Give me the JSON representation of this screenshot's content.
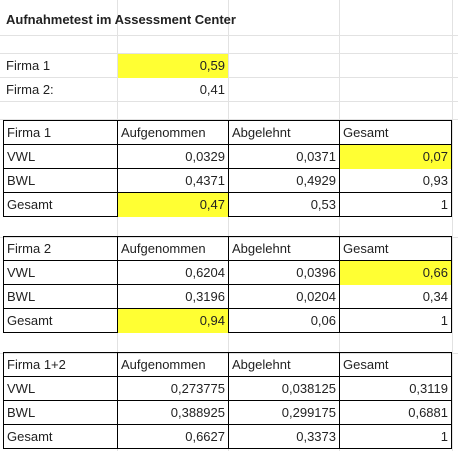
{
  "title": "Aufnahmetest im Assessment Center",
  "summary": [
    {
      "label": "Firma 1",
      "value": "0,59",
      "highlight": true
    },
    {
      "label": "Firma 2:",
      "value": "0,41",
      "highlight": false
    }
  ],
  "tables": [
    {
      "header": [
        "Firma 1",
        "Aufgenommen",
        "Abgelehnt",
        "Gesamt"
      ],
      "rows": [
        [
          "VWL",
          "0,0329",
          "0,0371",
          "0,07"
        ],
        [
          "BWL",
          "0,4371",
          "0,4929",
          "0,93"
        ],
        [
          "Gesamt",
          "0,47",
          "0,53",
          "1"
        ]
      ]
    },
    {
      "header": [
        "Firma 2",
        "Aufgenommen",
        "Abgelehnt",
        "Gesamt"
      ],
      "rows": [
        [
          "VWL",
          "0,6204",
          "0,0396",
          "0,66"
        ],
        [
          "BWL",
          "0,3196",
          "0,0204",
          "0,34"
        ],
        [
          "Gesamt",
          "0,94",
          "0,06",
          "1"
        ]
      ]
    },
    {
      "header": [
        "Firma 1+2",
        "Aufgenommen",
        "Abgelehnt",
        "Gesamt"
      ],
      "rows": [
        [
          "VWL",
          "0,273775",
          "0,038125",
          "0,3119"
        ],
        [
          "BWL",
          "0,388925",
          "0,299175",
          "0,6881"
        ],
        [
          "Gesamt",
          "0,6627",
          "0,3373",
          "1"
        ]
      ]
    }
  ],
  "highlight_color": "#ffff33"
}
